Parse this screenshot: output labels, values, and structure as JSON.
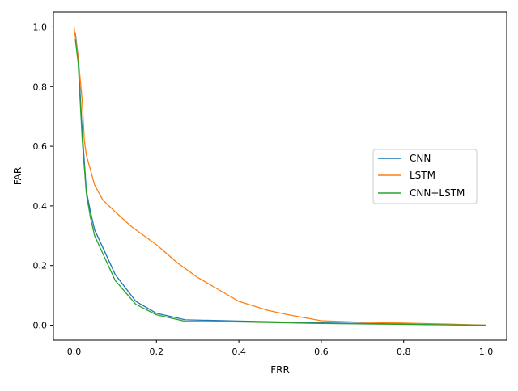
{
  "chart_data": {
    "type": "line",
    "title": "",
    "xlabel": "FRR",
    "ylabel": "FAR",
    "xlim": [
      -0.05,
      1.05
    ],
    "ylim": [
      -0.05,
      1.05
    ],
    "xticks": [
      0.0,
      0.2,
      0.4,
      0.6,
      0.8,
      1.0
    ],
    "yticks": [
      0.0,
      0.2,
      0.4,
      0.6,
      0.8,
      1.0
    ],
    "xtick_labels": [
      "0.0",
      "0.2",
      "0.4",
      "0.6",
      "0.8",
      "1.0"
    ],
    "ytick_labels": [
      "0.0",
      "0.2",
      "0.4",
      "0.6",
      "0.8",
      "1.0"
    ],
    "grid": false,
    "legend_position": "center-right",
    "series": [
      {
        "name": "CNN",
        "color": "#1f77b4",
        "x": [
          0.003,
          0.01,
          0.02,
          0.03,
          0.04,
          0.05,
          0.07,
          0.1,
          0.15,
          0.2,
          0.27,
          0.4,
          0.6,
          0.8,
          1.0
        ],
        "y": [
          0.98,
          0.9,
          0.65,
          0.45,
          0.38,
          0.32,
          0.26,
          0.17,
          0.08,
          0.04,
          0.018,
          0.014,
          0.008,
          0.004,
          0.0
        ]
      },
      {
        "name": "LSTM",
        "color": "#ff7f0e",
        "x": [
          0.0,
          0.01,
          0.02,
          0.025,
          0.03,
          0.04,
          0.05,
          0.07,
          0.1,
          0.14,
          0.2,
          0.25,
          0.3,
          0.35,
          0.4,
          0.47,
          0.52,
          0.6,
          0.7,
          0.8,
          0.9,
          1.0
        ],
        "y": [
          1.0,
          0.9,
          0.75,
          0.62,
          0.57,
          0.52,
          0.47,
          0.42,
          0.38,
          0.33,
          0.27,
          0.21,
          0.16,
          0.12,
          0.08,
          0.05,
          0.035,
          0.015,
          0.01,
          0.007,
          0.004,
          0.0
        ]
      },
      {
        "name": "CNN+LSTM",
        "color": "#2ca02c",
        "x": [
          0.003,
          0.01,
          0.02,
          0.03,
          0.04,
          0.05,
          0.07,
          0.1,
          0.15,
          0.2,
          0.27,
          0.4,
          0.6,
          0.8,
          1.0
        ],
        "y": [
          0.96,
          0.88,
          0.62,
          0.44,
          0.36,
          0.3,
          0.24,
          0.15,
          0.07,
          0.035,
          0.013,
          0.011,
          0.006,
          0.003,
          0.0
        ]
      }
    ]
  }
}
